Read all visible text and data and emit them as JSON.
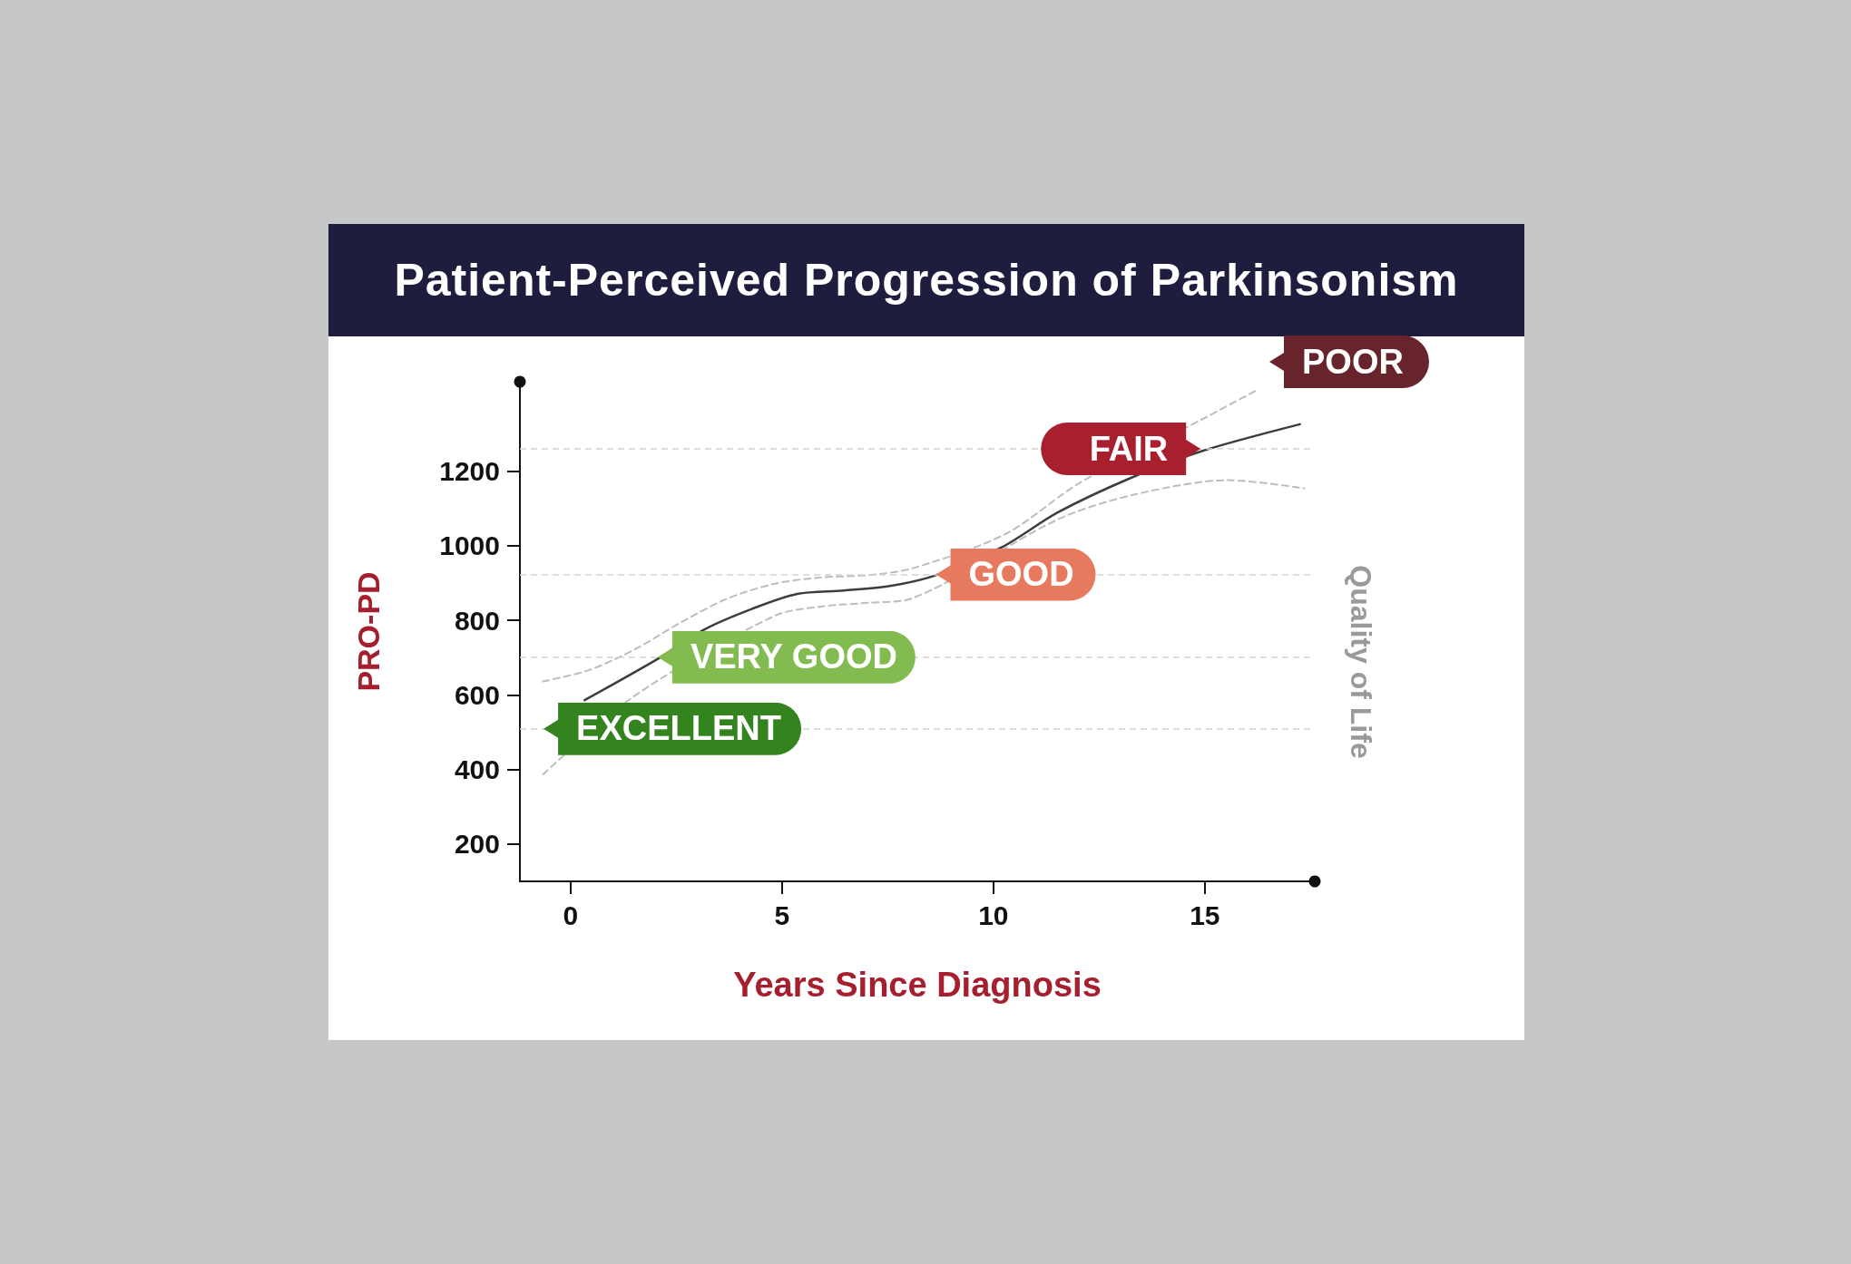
{
  "chart_data": {
    "type": "line",
    "title": "Patient-Perceived Progression of Parkinsonism",
    "xlabel": "Years Since Diagnosis",
    "ylabel": "PRO-PD",
    "y2label": "Quality of Life",
    "xlim": [
      -1.2,
      17.6
    ],
    "xticks": [
      0,
      5,
      10,
      15
    ],
    "ylim": [
      100,
      1440
    ],
    "yticks": [
      200,
      400,
      600,
      800,
      1000,
      1200
    ],
    "grid": false,
    "marker": "none",
    "series": [
      {
        "color": "#bdbdbd",
        "line_style": "dashed",
        "x": [
          -0.66,
          0.44,
          1.53,
          2.63,
          3.72,
          4.82,
          5.91,
          7.01,
          8.1,
          10.29,
          12.07,
          14.93,
          16.27
        ],
        "values": [
          636,
          667,
          723,
          796,
          859,
          898,
          915,
          921,
          940,
          1032,
          1171,
          1339,
          1420
        ]
      },
      {
        "color": "#bdbdbd",
        "line_style": "dashed",
        "x": [
          -0.65,
          1.53,
          4.82,
          5.91,
          7.01,
          8.1,
          11.53,
          13.32,
          15.55,
          17.35
        ],
        "values": [
          387,
          599,
          812,
          837,
          847,
          860,
          1071,
          1137,
          1176,
          1154
        ]
      },
      {
        "color": "#3d3d3d",
        "line_style": "solid",
        "x": [
          0.33,
          2.08,
          3.17,
          4.27,
          5.36,
          6.46,
          7.55,
          8.64,
          10.18,
          11.53,
          13.23,
          14.93,
          17.25
        ],
        "values": [
          586,
          698,
          776,
          830,
          871,
          880,
          892,
          921,
          995,
          1090,
          1181,
          1254,
          1326
        ]
      }
    ],
    "ref_lines": [
      {
        "axis": "y",
        "value": 509,
        "color": "#d4d4d4",
        "line_style": "dashed"
      },
      {
        "axis": "y",
        "value": 701,
        "color": "#d4d4d4",
        "line_style": "dashed"
      },
      {
        "axis": "y",
        "value": 923,
        "color": "#d4d4d4",
        "line_style": "dashed"
      },
      {
        "axis": "y",
        "value": 1260,
        "color": "#d4d4d4",
        "line_style": "dashed"
      }
    ],
    "annotations": [
      {
        "text": "EXCELLENT",
        "x": -0.64,
        "y": 509
      },
      {
        "text": "VERY GOOD",
        "x": 2.06,
        "y": 701
      },
      {
        "text": "GOOD",
        "x": 8.64,
        "y": 923
      },
      {
        "text": "FAIR",
        "x": 14.9,
        "y": 1260
      },
      "POOR"
    ]
  }
}
